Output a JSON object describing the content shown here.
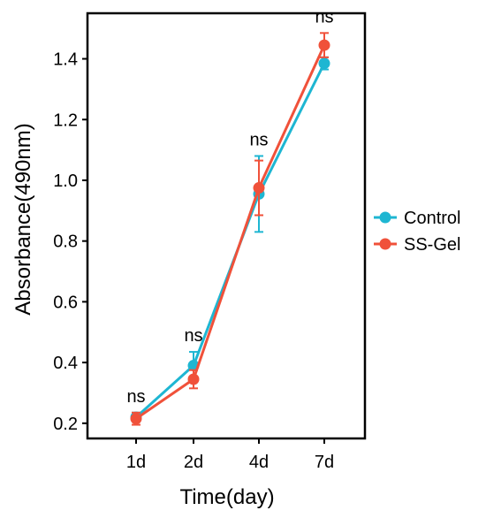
{
  "chart_data": {
    "type": "line",
    "xlabel": "Time(day)",
    "ylabel": "Absorbance(490nm)",
    "categories": [
      "1d",
      "2d",
      "4d",
      "7d"
    ],
    "ylim": [
      0.15,
      1.55
    ],
    "yticks": [
      0.2,
      0.4,
      0.6,
      0.8,
      1.0,
      1.2,
      1.4
    ],
    "ytick_labels": [
      "0.2",
      "0.4",
      "0.6",
      "0.8",
      "1.0",
      "1.2",
      "1.4"
    ],
    "annotations": [
      "ns",
      "ns",
      "ns",
      "ns"
    ],
    "grid": false,
    "legend_position": "right",
    "series": [
      {
        "name": "Control",
        "color": "#1eb6d2",
        "values": [
          0.22,
          0.39,
          0.955,
          1.385
        ],
        "error": [
          0.015,
          0.045,
          0.125,
          0.02
        ]
      },
      {
        "name": "SS-Gel",
        "color": "#f0513a",
        "values": [
          0.215,
          0.345,
          0.975,
          1.445
        ],
        "error": [
          0.02,
          0.03,
          0.09,
          0.04
        ]
      }
    ]
  }
}
